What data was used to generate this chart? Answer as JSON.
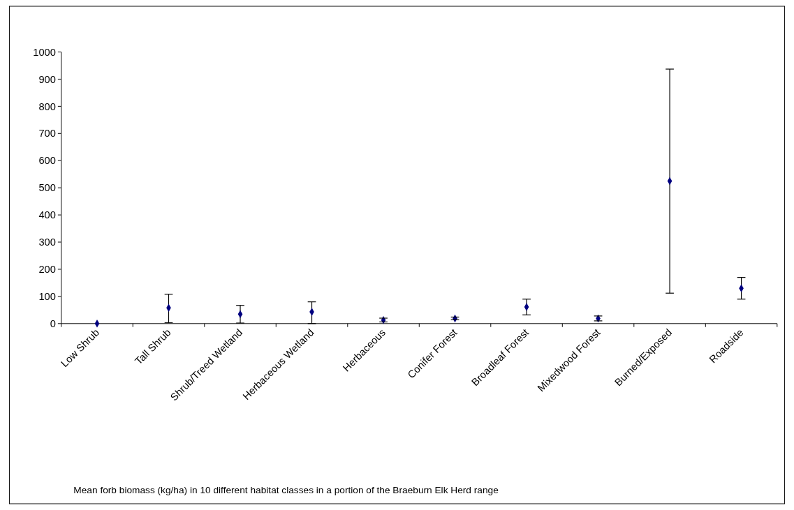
{
  "chart_data": {
    "type": "scatter",
    "categories": [
      "Low Shrub",
      "Tall Shrub",
      "Shrub/Treed Wetland",
      "Herbaceous Wetland",
      "Herbaceous",
      "Conifer Forest",
      "Broadleaf Forest",
      "Mixedwood Forest",
      "Burned/Exposed",
      "Roadside"
    ],
    "series": [
      {
        "color": "#000080",
        "values": [
          0,
          58,
          35,
          43,
          13,
          19,
          61,
          19,
          525,
          130
        ],
        "errors": [
          null,
          [
            3,
            108
          ],
          [
            2,
            67
          ],
          [
            0,
            80
          ],
          [
            6,
            20
          ],
          [
            14,
            24
          ],
          [
            32,
            90
          ],
          [
            10,
            28
          ],
          [
            112,
            937
          ],
          [
            90,
            170
          ]
        ]
      }
    ],
    "ylim": [
      0,
      1000
    ],
    "yticks": [
      0,
      100,
      200,
      300,
      400,
      500,
      600,
      700,
      800,
      900,
      1000
    ],
    "grid": false,
    "marker": "diamond",
    "annotations": [
      "Mean forb biomass (kg/ha) in 10 different habitat classes in a portion of the Braeburn Elk Herd range"
    ]
  }
}
